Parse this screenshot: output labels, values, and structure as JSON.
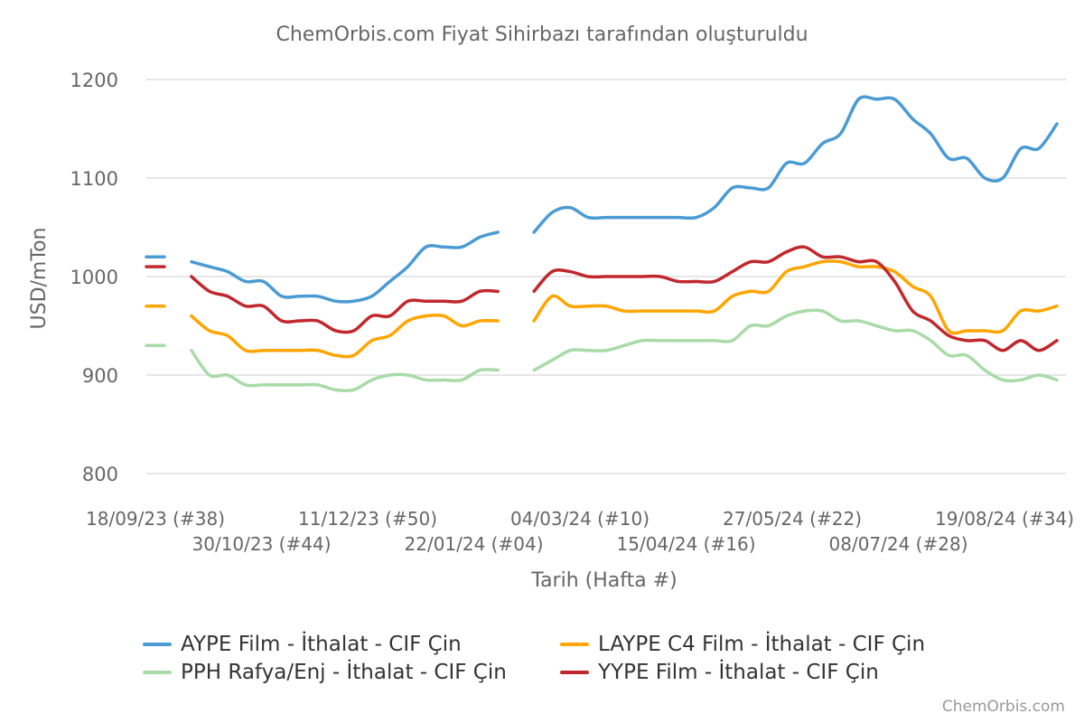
{
  "chart_data": {
    "type": "line",
    "title": "ChemOrbis.com Fiyat Sihirbazı tarafından oluşturuldu",
    "xlabel": "Tarih (Hafta #)",
    "ylabel": "USD/mTon",
    "ylim": [
      800,
      1200
    ],
    "yticks": [
      "800",
      "900",
      "1000",
      "1100",
      "1200"
    ],
    "grid": true,
    "legend_position": "bottom",
    "x_tick_labels": [
      "18/09/23 (#38)",
      "30/10/23 (#44)",
      "11/12/23 (#50)",
      "22/01/24 (#04)",
      "04/03/24 (#10)",
      "15/04/24 (#16)",
      "27/05/24 (#22)",
      "08/07/24 (#28)",
      "19/08/24 (#34)"
    ],
    "series": [
      {
        "name": "AYPE Film - İthalat - CIF Çin",
        "color": "#4a9bd4",
        "values": [
          1020,
          null,
          1015,
          1010,
          1005,
          995,
          995,
          980,
          980,
          980,
          975,
          975,
          980,
          995,
          1010,
          1030,
          1030,
          1030,
          1040,
          1045,
          null,
          1045,
          1065,
          1070,
          1060,
          1060,
          1060,
          1060,
          1060,
          1060,
          1060,
          1070,
          1090,
          1090,
          1090,
          1115,
          1115,
          1135,
          1145,
          1180,
          1180,
          1180,
          1160,
          1145,
          1120,
          1120,
          1100,
          1100,
          1130,
          1130,
          1155
        ]
      },
      {
        "name": "LAYPE C4 Film - İthalat - CIF Çin",
        "color": "#ffa500",
        "values": [
          970,
          null,
          960,
          945,
          940,
          925,
          925,
          925,
          925,
          925,
          920,
          920,
          935,
          940,
          955,
          960,
          960,
          950,
          955,
          955,
          null,
          955,
          980,
          970,
          970,
          970,
          965,
          965,
          965,
          965,
          965,
          965,
          980,
          985,
          985,
          1005,
          1010,
          1015,
          1015,
          1010,
          1010,
          1005,
          990,
          980,
          945,
          945,
          945,
          945,
          965,
          965,
          970
        ]
      },
      {
        "name": "PPH Rafya/Enj - İthalat - CIF Çin",
        "color": "#a8dba8",
        "values": [
          930,
          null,
          925,
          900,
          900,
          890,
          890,
          890,
          890,
          890,
          885,
          885,
          895,
          900,
          900,
          895,
          895,
          895,
          905,
          905,
          null,
          905,
          915,
          925,
          925,
          925,
          930,
          935,
          935,
          935,
          935,
          935,
          935,
          950,
          950,
          960,
          965,
          965,
          955,
          955,
          950,
          945,
          945,
          935,
          920,
          920,
          905,
          895,
          895,
          900,
          895
        ]
      },
      {
        "name": "YYPE Film - İthalat - CIF Çin",
        "color": "#c0282d",
        "values": [
          1010,
          null,
          1000,
          985,
          980,
          970,
          970,
          955,
          955,
          955,
          945,
          945,
          960,
          960,
          975,
          975,
          975,
          975,
          985,
          985,
          null,
          985,
          1005,
          1005,
          1000,
          1000,
          1000,
          1000,
          1000,
          995,
          995,
          995,
          1005,
          1015,
          1015,
          1025,
          1030,
          1020,
          1020,
          1015,
          1015,
          995,
          965,
          955,
          940,
          935,
          935,
          925,
          935,
          925,
          935
        ]
      }
    ]
  },
  "watermark": "ChemOrbis.com"
}
